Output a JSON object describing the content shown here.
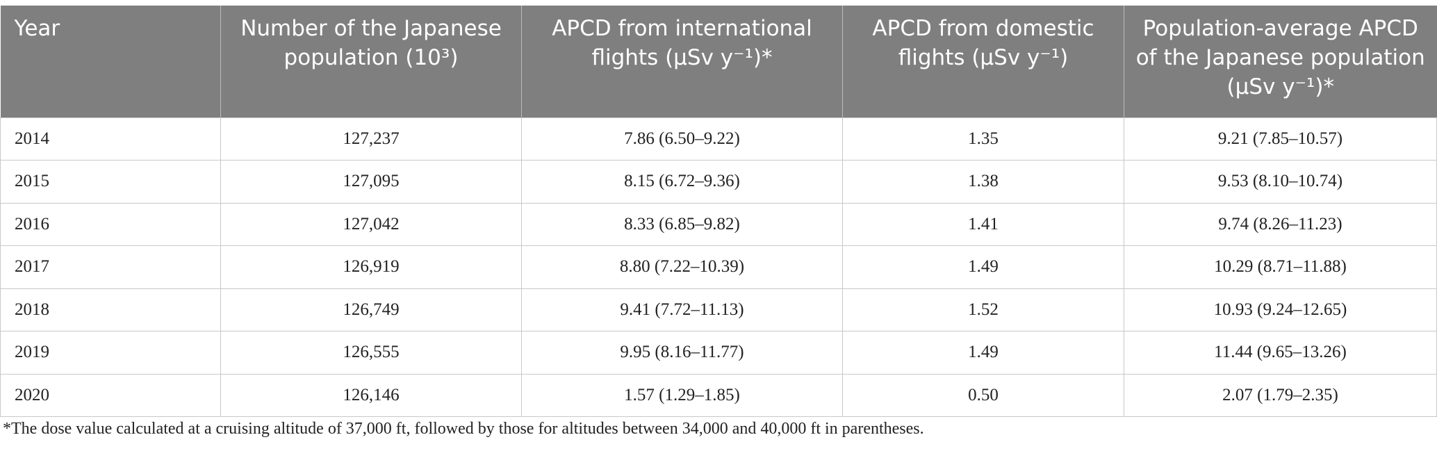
{
  "table": {
    "header": [
      "Year",
      "Number of the Japanese population (10³)",
      "APCD from international flights (μSv y⁻¹)*",
      "APCD from domestic flights (μSv y⁻¹)",
      "Population-average APCD of the Japanese population (μSv y⁻¹)*"
    ],
    "rows": [
      [
        "2014",
        "127,237",
        "7.86 (6.50–9.22)",
        "1.35",
        "9.21 (7.85–10.57)"
      ],
      [
        "2015",
        "127,095",
        "8.15 (6.72–9.36)",
        "1.38",
        "9.53 (8.10–10.74)"
      ],
      [
        "2016",
        "127,042",
        "8.33 (6.85–9.82)",
        "1.41",
        "9.74 (8.26–11.23)"
      ],
      [
        "2017",
        "126,919",
        "8.80 (7.22–10.39)",
        "1.49",
        "10.29 (8.71–11.88)"
      ],
      [
        "2018",
        "126,749",
        "9.41 (7.72–11.13)",
        "1.52",
        "10.93 (9.24–12.65)"
      ],
      [
        "2019",
        "126,555",
        "9.95 (8.16–11.77)",
        "1.49",
        "11.44 (9.65–13.26)"
      ],
      [
        "2020",
        "126,146",
        "1.57 (1.29–1.85)",
        "0.50",
        "2.07 (1.79–2.35)"
      ]
    ]
  },
  "footnote": "*The dose value calculated at a cruising altitude of 37,000 ft, followed by those for altitudes between 34,000 and 40,000 ft in parentheses."
}
